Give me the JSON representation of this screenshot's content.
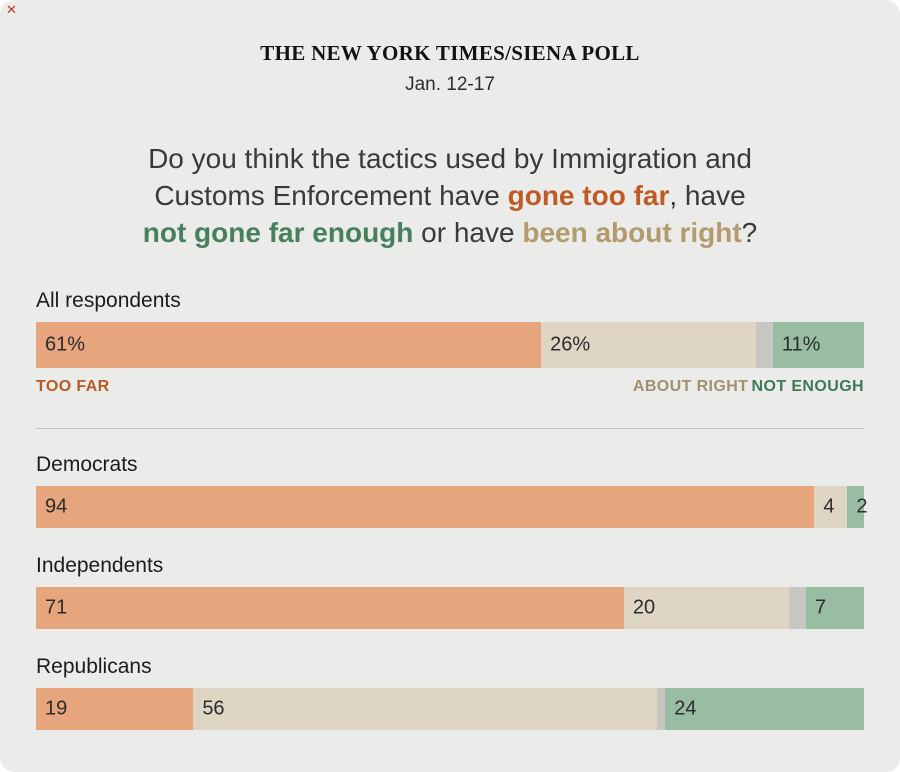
{
  "header": {
    "kicker": "THE NEW YORK TIMES/SIENA POLL",
    "date": "Jan. 12-17"
  },
  "icons": {
    "stray_red": "✕"
  },
  "question": {
    "parts": [
      {
        "text": "Do you think the tactics used by Immigration and",
        "emphasis": "plain"
      },
      {
        "text": "Customs Enforcement have ",
        "emphasis": "plain"
      },
      {
        "text": "gone too far",
        "emphasis": "too_far"
      },
      {
        "text": ", have",
        "emphasis": "plain"
      },
      {
        "text": "not gone far enough",
        "emphasis": "not_enough"
      },
      {
        "text": " or have ",
        "emphasis": "plain"
      },
      {
        "text": "been about right",
        "emphasis": "about_right"
      },
      {
        "text": "?",
        "emphasis": "plain"
      }
    ]
  },
  "legend": {
    "too_far": "TOO FAR",
    "about_right": "ABOUT RIGHT",
    "not_enough": "NOT ENOUGH"
  },
  "colors": {
    "background": "#ebebea",
    "too_far_bar": "#e7a57e",
    "about_right_bar": "#ded5c3",
    "unlabeled_bar": "#c6c6c2",
    "not_enough_bar": "#99bda3",
    "too_far_text": "#bf5b25",
    "about_right_text": "#a09171",
    "not_enough_text": "#3e7a58"
  },
  "chart_data": {
    "type": "bar",
    "stacked": true,
    "orientation": "horizontal",
    "title": "Do you think the tactics used by Immigration and Customs Enforcement have gone too far, have not gone far enough or have been about right?",
    "xlim": [
      0,
      100
    ],
    "categories": [
      "All respondents",
      "Democrats",
      "Independents",
      "Republicans"
    ],
    "series": [
      {
        "name": "Too far",
        "key": "too-far",
        "color": "#e7a57e",
        "values": [
          61,
          94,
          71,
          19
        ]
      },
      {
        "name": "About right",
        "key": "about-right",
        "color": "#ded5c3",
        "values": [
          26,
          4,
          20,
          56
        ]
      },
      {
        "name": "Unlabeled",
        "key": "unlabeled",
        "color": "#c6c6c2",
        "values": [
          2,
          0,
          2,
          1
        ]
      },
      {
        "name": "Not enough",
        "key": "not-enough",
        "color": "#99bda3",
        "values": [
          11,
          2,
          7,
          24
        ]
      }
    ],
    "value_labels": [
      [
        "61%",
        "26%",
        null,
        "11%"
      ],
      [
        "94",
        "4",
        null,
        "2"
      ],
      [
        "71",
        "20",
        null,
        "7"
      ],
      [
        "19",
        "56",
        null,
        "24"
      ]
    ]
  }
}
